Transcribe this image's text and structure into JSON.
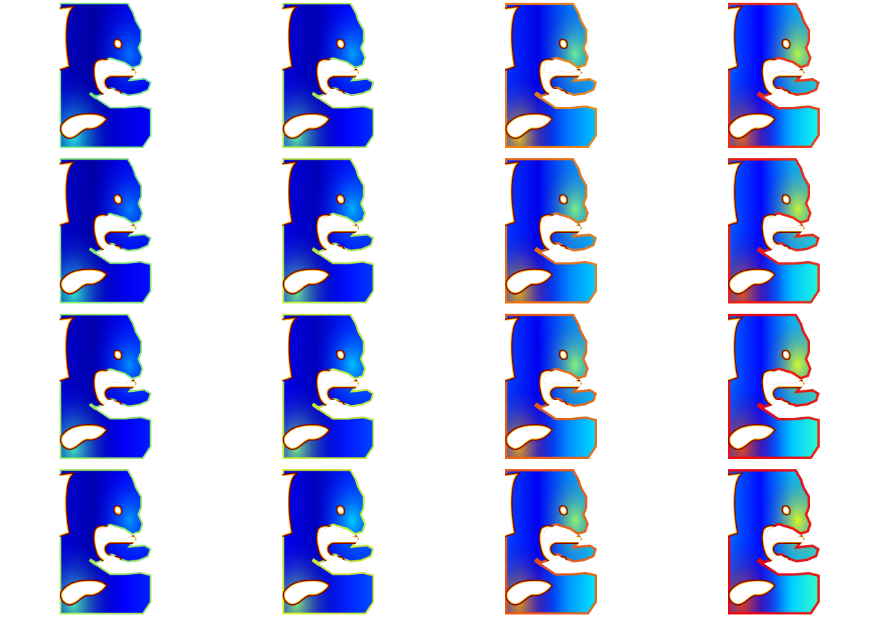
{
  "figure": {
    "colormap": "jet",
    "colormap_stops": [
      "#00007f",
      "#0000ff",
      "#007fff",
      "#00ffff",
      "#7fff7f",
      "#ffff00",
      "#ff7f00",
      "#ff0000",
      "#7f0000"
    ],
    "background": "#ffffff",
    "rows": 4,
    "cols": 4,
    "column_intensity": [
      0.18,
      0.28,
      0.62,
      0.78
    ],
    "row_intensity": [
      0.08,
      0.05,
      0.02,
      0.0
    ]
  }
}
